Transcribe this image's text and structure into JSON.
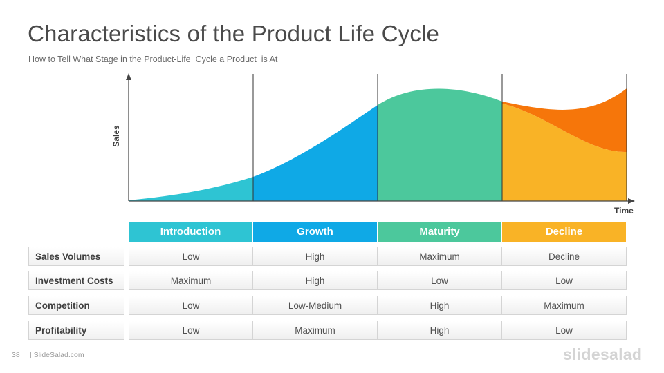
{
  "slide": {
    "title": "Characteristics of the Product Life Cycle",
    "subtitle": "How to Tell What Stage in the Product-Life  Cycle a Product  is At",
    "page_number": "38",
    "site": "| SlideSalad.com",
    "logo": "slidesalad"
  },
  "chart": {
    "ylabel": "Sales",
    "xlabel": "Time",
    "stages": [
      {
        "name": "Introduction",
        "color": "#2EC4D3"
      },
      {
        "name": "Growth",
        "color": "#0FA9E6"
      },
      {
        "name": "Maturity",
        "color": "#4CC89C"
      },
      {
        "name": "Decline",
        "color": "#F9B326"
      }
    ],
    "decline_upper_color": "#F6760A"
  },
  "table": {
    "rows": [
      {
        "label": "Sales Volumes",
        "values": [
          "Low",
          "High",
          "Maximum",
          "Decline"
        ]
      },
      {
        "label": "Investment Costs",
        "values": [
          "Maximum",
          "High",
          "Low",
          "Low"
        ]
      },
      {
        "label": "Competition",
        "values": [
          "Low",
          "Low-Medium",
          "High",
          "Maximum"
        ]
      },
      {
        "label": "Profitability",
        "values": [
          "Low",
          "Maximum",
          "High",
          "Low"
        ]
      }
    ]
  }
}
